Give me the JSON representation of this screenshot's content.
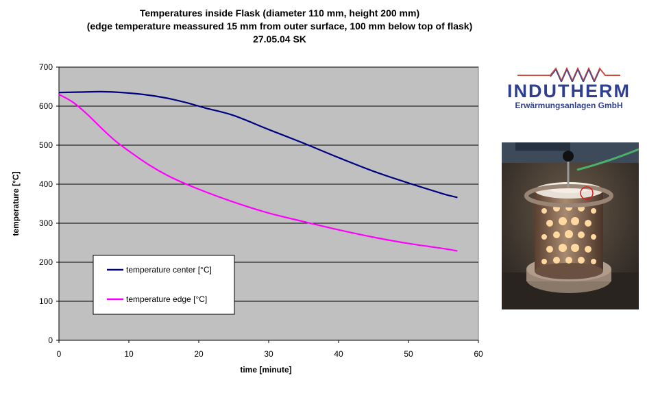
{
  "title": {
    "line1": "Temperatures inside Flask (diameter 110 mm, height 200 mm)",
    "line2": "(edge temperature meassured 15 mm from outer surface, 100 mm below top of flask)",
    "line3": "27.05.04 SK"
  },
  "chart_data": {
    "type": "line",
    "xlabel": "time [minute]",
    "ylabel": "temperature [°C]",
    "xlim": [
      0,
      60
    ],
    "ylim": [
      0,
      700
    ],
    "xticks": [
      0,
      10,
      20,
      30,
      40,
      50,
      60
    ],
    "yticks": [
      0,
      100,
      200,
      300,
      400,
      500,
      600,
      700
    ],
    "grid": "horizontal",
    "legend": "lower-left",
    "series": [
      {
        "name": "temperature center [°C]",
        "color": "#000080",
        "x": [
          0,
          3,
          6,
          9,
          12,
          15,
          18,
          21,
          25,
          30,
          35,
          40,
          45,
          50,
          55,
          57
        ],
        "y": [
          635,
          636,
          637,
          635,
          630,
          622,
          610,
          595,
          576,
          540,
          505,
          468,
          433,
          403,
          375,
          366
        ]
      },
      {
        "name": "temperature edge [°C]",
        "color": "#ff00ff",
        "x": [
          0,
          2,
          4,
          6,
          8,
          10,
          13,
          16,
          20,
          25,
          30,
          35,
          40,
          45,
          50,
          55,
          57
        ],
        "y": [
          630,
          610,
          580,
          545,
          512,
          485,
          448,
          418,
          387,
          354,
          326,
          304,
          283,
          264,
          248,
          235,
          229
        ]
      }
    ]
  },
  "logo": {
    "name": "INDUTHERM",
    "subtitle": "Erwärmungsanlagen GmbH"
  },
  "colors": {
    "plot_background": "#c0c0c0",
    "logo_blue": "#2f3f8f",
    "logo_red": "#d24a3a"
  }
}
